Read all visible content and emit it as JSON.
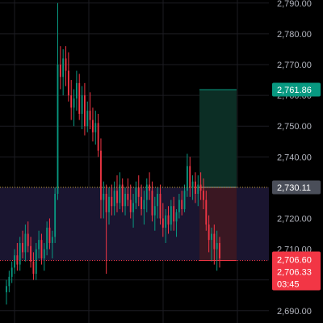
{
  "chart_data": {
    "type": "candlestick",
    "ylim": [
      2686,
      2791
    ],
    "yticks": [
      2690,
      2700,
      2710,
      2720,
      2730,
      2740,
      2750,
      2760,
      2770,
      2780,
      2790
    ],
    "ytick_labels": [
      "2,690.00",
      "2,700.00",
      "2,710.00",
      "2,720.00",
      "2,730.00",
      "2,740.00",
      "2,750.00",
      "2,760.00",
      "2,770.00",
      "2,780.00",
      "2,790.00"
    ],
    "grid": true,
    "highlight_band": [
      2706.33,
      2730.11
    ],
    "position": {
      "entry": 2730.11,
      "target": 2761.86,
      "stop": 2706.33
    },
    "price_tags": [
      {
        "role": "target",
        "price": 2761.86,
        "label": "2,761.86",
        "color": "#089981"
      },
      {
        "role": "entry",
        "price": 2730.11,
        "label": "2,730.11",
        "color": "#4a4e59"
      },
      {
        "role": "current",
        "price": 2706.6,
        "label": "2,706.60",
        "color": "#f23645"
      },
      {
        "role": "stop",
        "price": 2706.33,
        "label": "2,706.33",
        "sublabel": "03:45",
        "color": "#f23645"
      }
    ],
    "colors": {
      "up": "#089981",
      "down": "#f23645",
      "grid": "#1c1c22",
      "band": "#1a1530",
      "profit_zone": "#0c2e25",
      "loss_zone": "#3a1722",
      "entry_line": "#c9a23a"
    },
    "candles": [
      [
        2696,
        2700,
        2692,
        2698
      ],
      [
        2698,
        2703,
        2696,
        2701
      ],
      [
        2701,
        2706,
        2699,
        2704
      ],
      [
        2704,
        2710,
        2702,
        2708
      ],
      [
        2708,
        2712,
        2703,
        2705
      ],
      [
        2705,
        2714,
        2703,
        2712
      ],
      [
        2712,
        2716,
        2707,
        2709
      ],
      [
        2709,
        2718,
        2706,
        2715
      ],
      [
        2715,
        2719,
        2709,
        2711
      ],
      [
        2711,
        2714,
        2704,
        2706
      ],
      [
        2706,
        2709,
        2700,
        2702
      ],
      [
        2702,
        2712,
        2700,
        2710
      ],
      [
        2710,
        2716,
        2707,
        2713
      ],
      [
        2713,
        2715,
        2705,
        2707
      ],
      [
        2707,
        2712,
        2703,
        2710
      ],
      [
        2710,
        2719,
        2708,
        2717
      ],
      [
        2717,
        2720,
        2710,
        2712
      ],
      [
        2712,
        2716,
        2707,
        2714
      ],
      [
        2714,
        2730,
        2712,
        2728
      ],
      [
        2728,
        2790,
        2726,
        2770
      ],
      [
        2770,
        2776,
        2762,
        2766
      ],
      [
        2766,
        2775,
        2760,
        2772
      ],
      [
        2772,
        2776,
        2763,
        2768
      ],
      [
        2768,
        2774,
        2758,
        2760
      ],
      [
        2760,
        2765,
        2752,
        2756
      ],
      [
        2756,
        2762,
        2750,
        2759
      ],
      [
        2759,
        2768,
        2755,
        2764
      ],
      [
        2764,
        2767,
        2752,
        2754
      ],
      [
        2754,
        2763,
        2749,
        2760
      ],
      [
        2760,
        2764,
        2747,
        2750
      ],
      [
        2750,
        2758,
        2748,
        2755
      ],
      [
        2755,
        2761,
        2749,
        2752
      ],
      [
        2752,
        2756,
        2745,
        2748
      ],
      [
        2748,
        2755,
        2744,
        2751
      ],
      [
        2751,
        2754,
        2740,
        2742
      ],
      [
        2742,
        2746,
        2720,
        2726
      ],
      [
        2726,
        2732,
        2720,
        2728
      ],
      [
        2728,
        2731,
        2702,
        2722
      ],
      [
        2722,
        2730,
        2718,
        2727
      ],
      [
        2727,
        2731,
        2721,
        2724
      ],
      [
        2724,
        2732,
        2721,
        2729
      ],
      [
        2729,
        2734,
        2722,
        2725
      ],
      [
        2725,
        2735,
        2723,
        2731
      ],
      [
        2731,
        2733,
        2722,
        2724
      ],
      [
        2724,
        2730,
        2721,
        2728
      ],
      [
        2728,
        2733,
        2724,
        2726
      ],
      [
        2726,
        2731,
        2720,
        2722
      ],
      [
        2722,
        2728,
        2717,
        2725
      ],
      [
        2725,
        2732,
        2723,
        2730
      ],
      [
        2730,
        2734,
        2724,
        2727
      ],
      [
        2727,
        2731,
        2721,
        2723
      ],
      [
        2723,
        2729,
        2718,
        2726
      ],
      [
        2726,
        2733,
        2722,
        2731
      ],
      [
        2731,
        2735,
        2726,
        2729
      ],
      [
        2729,
        2732,
        2719,
        2721
      ],
      [
        2721,
        2727,
        2716,
        2724
      ],
      [
        2724,
        2730,
        2720,
        2728
      ],
      [
        2728,
        2731,
        2718,
        2720
      ],
      [
        2720,
        2725,
        2714,
        2717
      ],
      [
        2717,
        2723,
        2712,
        2721
      ],
      [
        2721,
        2724,
        2715,
        2718
      ],
      [
        2718,
        2726,
        2716,
        2724
      ],
      [
        2724,
        2727,
        2716,
        2719
      ],
      [
        2719,
        2723,
        2714,
        2722
      ],
      [
        2722,
        2728,
        2720,
        2726
      ],
      [
        2726,
        2729,
        2721,
        2723
      ],
      [
        2723,
        2731,
        2722,
        2729
      ],
      [
        2729,
        2741,
        2727,
        2737
      ],
      [
        2737,
        2740,
        2727,
        2730
      ],
      [
        2730,
        2734,
        2726,
        2732
      ],
      [
        2732,
        2735,
        2725,
        2728
      ],
      [
        2728,
        2734,
        2724,
        2731
      ],
      [
        2731,
        2735,
        2726,
        2729
      ],
      [
        2729,
        2733,
        2723,
        2726
      ],
      [
        2726,
        2729,
        2716,
        2718
      ],
      [
        2718,
        2721,
        2709,
        2713
      ],
      [
        2713,
        2717,
        2706,
        2715
      ],
      [
        2715,
        2718,
        2705,
        2710
      ],
      [
        2710,
        2716,
        2703,
        2712
      ],
      [
        2712,
        2714,
        2704,
        2707
      ]
    ]
  }
}
